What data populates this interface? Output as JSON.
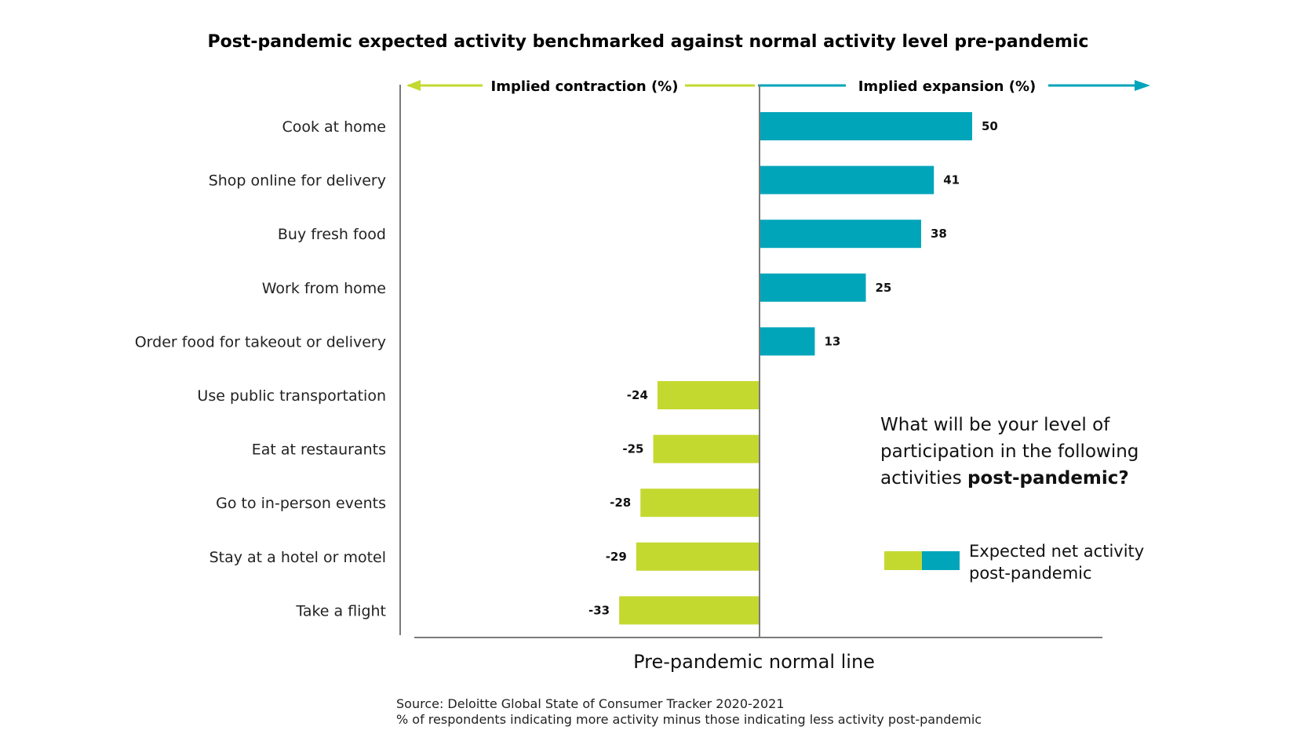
{
  "colors": {
    "expansion": "#00A5BA",
    "contraction": "#C4D930",
    "axis": "#7a7a7a"
  },
  "chart_data": {
    "type": "bar",
    "orientation": "horizontal",
    "title": "Post-pandemic expected activity benchmarked against normal activity level pre-pandemic",
    "left_header": "Implied contraction (%)",
    "right_header": "Implied expansion (%)",
    "baseline_label": "Pre-pandemic normal line",
    "categories": [
      "Cook at home",
      "Shop online for delivery",
      "Buy fresh food",
      "Work from home",
      "Order food for takeout or delivery",
      "Use public transportation",
      "Eat at restaurants",
      "Go to in-person events",
      "Stay at a hotel or motel",
      "Take a flight"
    ],
    "values": [
      50,
      41,
      38,
      25,
      13,
      -24,
      -25,
      -28,
      -29,
      -33
    ],
    "data_labels": [
      "50",
      "41",
      "38",
      "25",
      "13",
      "-24",
      "-25",
      "-28",
      "-29",
      "-33"
    ],
    "legend_label_line1": "Expected net activity",
    "legend_label_line2": "post-pandemic",
    "grid": false
  },
  "question": {
    "line1": "What will be your level of",
    "line2": "participation in the following",
    "line3_prefix": "activities ",
    "line3_bold": "post-pandemic?"
  },
  "source": {
    "line1": "Source: Deloitte Global State of Consumer Tracker 2020-2021",
    "line2": "% of respondents indicating more activity minus those indicating less activity post-pandemic"
  }
}
